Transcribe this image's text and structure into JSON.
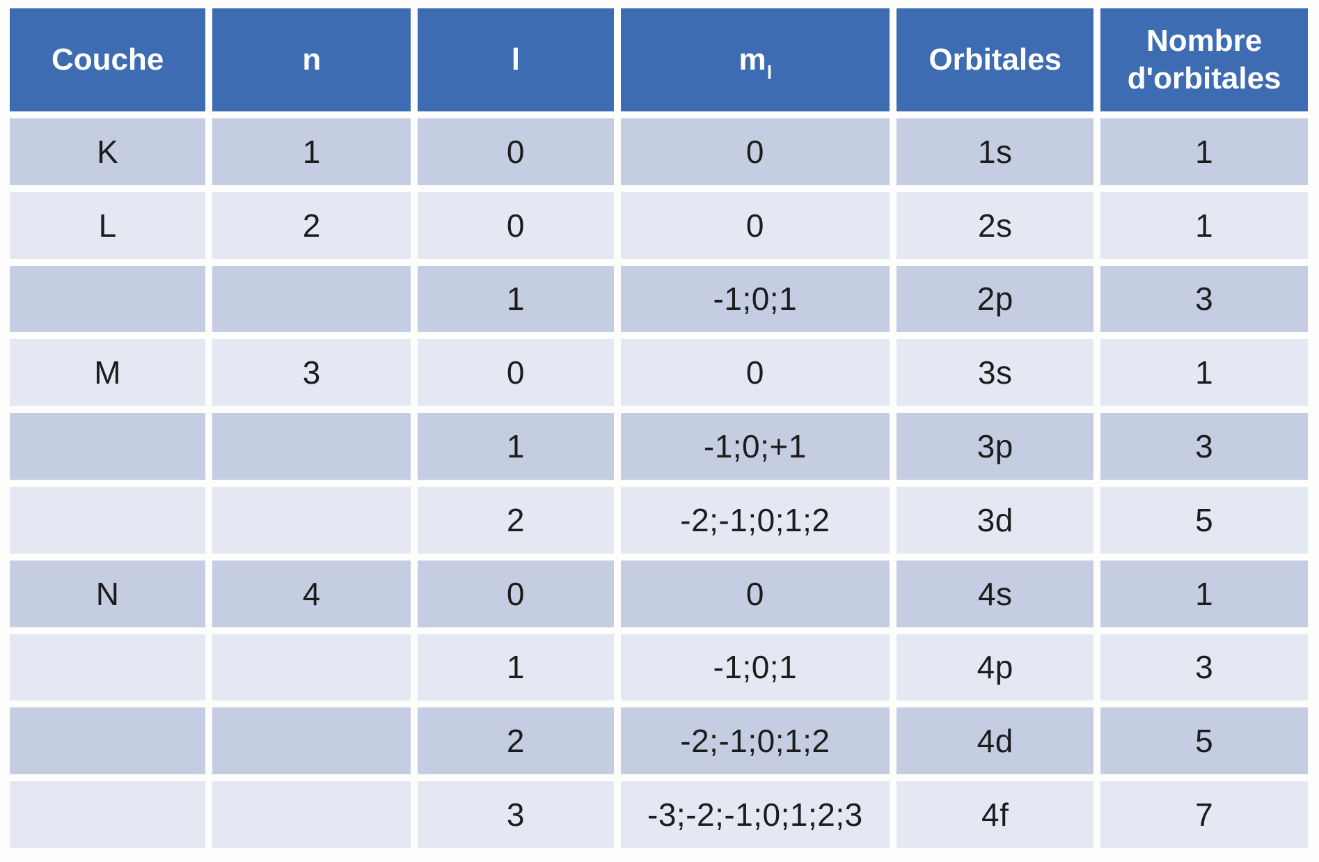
{
  "table": {
    "title_semantic": "quantum-numbers-and-orbitals-table",
    "columns": [
      {
        "key": "couche",
        "label": "Couche"
      },
      {
        "key": "n",
        "label": "n"
      },
      {
        "key": "l",
        "label": "l"
      },
      {
        "key": "ml",
        "label": "m",
        "sub": "l"
      },
      {
        "key": "orbitales",
        "label": "Orbitales"
      },
      {
        "key": "nombre",
        "label": "Nombre d'orbitales"
      }
    ],
    "rows": [
      {
        "couche": "K",
        "n": "1",
        "l": "0",
        "ml": "0",
        "orbitales": "1s",
        "nombre": "1"
      },
      {
        "couche": "L",
        "n": "2",
        "l": "0",
        "ml": "0",
        "orbitales": "2s",
        "nombre": "1"
      },
      {
        "couche": "",
        "n": "",
        "l": "1",
        "ml": "-1;0;1",
        "orbitales": "2p",
        "nombre": "3"
      },
      {
        "couche": "M",
        "n": "3",
        "l": "0",
        "ml": "0",
        "orbitales": "3s",
        "nombre": "1"
      },
      {
        "couche": "",
        "n": "",
        "l": "1",
        "ml": "-1;0;+1",
        "orbitales": "3p",
        "nombre": "3"
      },
      {
        "couche": "",
        "n": "",
        "l": "2",
        "ml": "-2;-1;0;1;2",
        "orbitales": "3d",
        "nombre": "5"
      },
      {
        "couche": "N",
        "n": "4",
        "l": "0",
        "ml": "0",
        "orbitales": "4s",
        "nombre": "1"
      },
      {
        "couche": "",
        "n": "",
        "l": "1",
        "ml": "-1;0;1",
        "orbitales": "4p",
        "nombre": "3"
      },
      {
        "couche": "",
        "n": "",
        "l": "2",
        "ml": "-2;-1;0;1;2",
        "orbitales": "4d",
        "nombre": "5"
      },
      {
        "couche": "",
        "n": "",
        "l": "3",
        "ml": "-3;-2;-1;0;1;2;3",
        "orbitales": "4f",
        "nombre": "7"
      }
    ]
  },
  "colors": {
    "header_bg": "#3e6cb2",
    "header_text": "#ffffff",
    "row_dark": "#c4cde1",
    "row_light": "#e4e8f2",
    "gutter": "#ffffff",
    "body_text": "#1c1c1c",
    "page_bg": "#fdfdfb"
  }
}
